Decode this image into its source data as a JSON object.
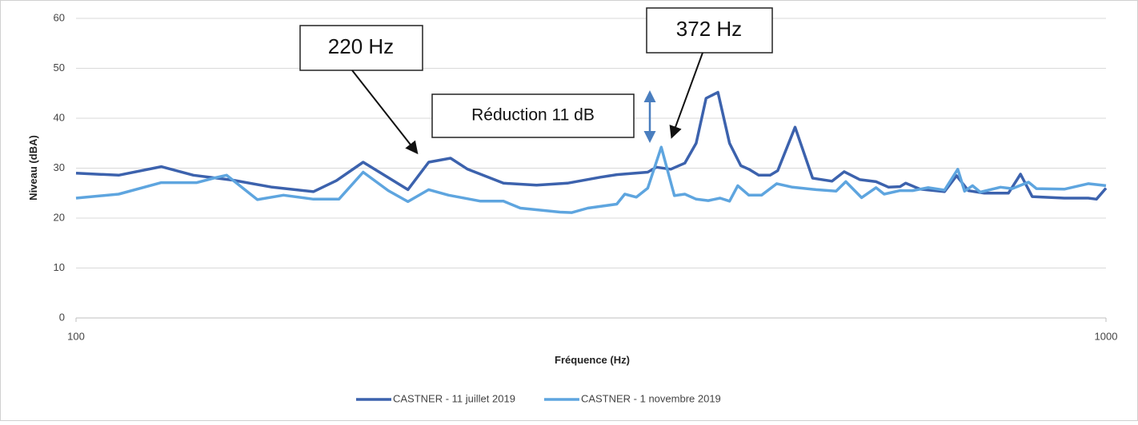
{
  "chart_data": {
    "type": "line",
    "xlabel": "Fréquence (Hz)",
    "ylabel": "Niveau (dBA)",
    "xscale": "log",
    "xlim": [
      100,
      1000
    ],
    "xticks": [
      100,
      1000
    ],
    "ylim": [
      0,
      60
    ],
    "yticks": [
      0,
      10,
      20,
      30,
      40,
      50,
      60
    ],
    "grid": true,
    "legend": "bottom",
    "annotations": [
      "220 Hz",
      "372 Hz",
      "Réduction 11 dB"
    ],
    "series": [
      {
        "name": "CASTNER - 11 juillet 2019",
        "color": "#3c62ad",
        "x": [
          100,
          110,
          121,
          130,
          142,
          155,
          170,
          179,
          190,
          210,
          220,
          231,
          240,
          260,
          280,
          300,
          323,
          335,
          359,
          366,
          378,
          390,
          400,
          409,
          420,
          431,
          442,
          450,
          460,
          472,
          480,
          499,
          519,
          542,
          557,
          577,
          598,
          615,
          631,
          639,
          660,
          697,
          716,
          735,
          762,
          804,
          826,
          848,
          911,
          961,
          979,
          1000
        ],
        "values": [
          29,
          28.6,
          30.3,
          28.6,
          27.6,
          26.2,
          25.3,
          27.5,
          31.2,
          25.7,
          31.2,
          32,
          29.8,
          27,
          26.6,
          27,
          28.2,
          28.7,
          29.2,
          30.2,
          29.8,
          31,
          35,
          44,
          45.2,
          35,
          30.5,
          29.8,
          28.6,
          28.6,
          29.5,
          38.2,
          28,
          27.4,
          29.3,
          27.7,
          27.3,
          26.2,
          26.3,
          27,
          25.8,
          25.3,
          28.5,
          25.5,
          25,
          25,
          28.8,
          24.3,
          24,
          24,
          23.8,
          26
        ]
      },
      {
        "name": "CASTNER - 1 novembre 2019",
        "color": "#5ea5df",
        "x": [
          100,
          110,
          121,
          131,
          136,
          140,
          150,
          159,
          170,
          180,
          190,
          201,
          210,
          220,
          230,
          247,
          260,
          270,
          295,
          303,
          314,
          335,
          341,
          350,
          359,
          370,
          381,
          390,
          400,
          411,
          422,
          431,
          439,
          450,
          463,
          479,
          496,
          523,
          547,
          559,
          579,
          598,
          609,
          631,
          649,
          672,
          697,
          718,
          729,
          742,
          755,
          790,
          811,
          841,
          856,
          911,
          961,
          1000
        ],
        "values": [
          24,
          24.8,
          27.1,
          27.1,
          28,
          28.6,
          23.7,
          24.6,
          23.8,
          23.8,
          29.2,
          25.5,
          23.3,
          25.7,
          24.6,
          23.4,
          23.4,
          22,
          21.2,
          21.1,
          22,
          22.8,
          24.8,
          24.2,
          26,
          34.2,
          24.5,
          24.8,
          23.8,
          23.5,
          24,
          23.4,
          26.5,
          24.6,
          24.6,
          26.9,
          26.2,
          25.7,
          25.4,
          27.3,
          24.1,
          26.1,
          24.8,
          25.5,
          25.5,
          26.1,
          25.6,
          29.8,
          25.4,
          26.5,
          25.2,
          26.2,
          25.9,
          27.2,
          25.9,
          25.8,
          26.9,
          26.5
        ]
      }
    ]
  }
}
